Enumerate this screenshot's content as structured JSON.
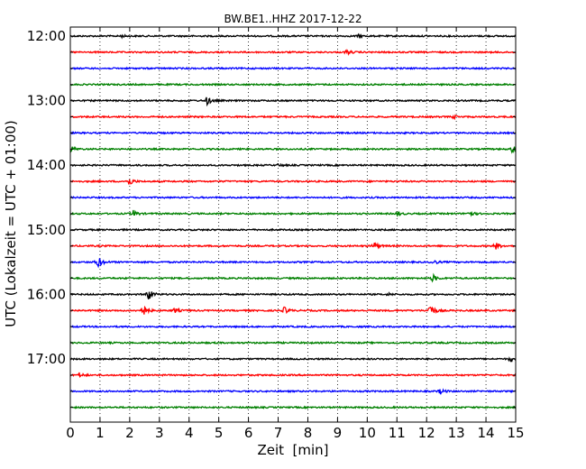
{
  "chart_data": {
    "type": "line",
    "title": "BW.BE1..HHZ 2017-12-22",
    "xlabel": "Zeit  [min]",
    "ylabel": "UTC (Lokalzeit = UTC + 01:00)",
    "xlim": [
      0,
      15
    ],
    "x_ticks": [
      0,
      1,
      2,
      3,
      4,
      5,
      6,
      7,
      8,
      9,
      10,
      11,
      12,
      13,
      14,
      15
    ],
    "x_tick_labels": [
      "0",
      "1",
      "2",
      "3",
      "4",
      "5",
      "6",
      "7",
      "8",
      "9",
      "10",
      "11",
      "12",
      "13",
      "14",
      "15"
    ],
    "y_tick_labels": [
      "12:00",
      "13:00",
      "14:00",
      "15:00",
      "16:00",
      "17:00"
    ],
    "grid": "vertical dotted",
    "trace_colors": [
      "#000000",
      "#ff0000",
      "#0000ff",
      "#008000"
    ],
    "rows": [
      {
        "start": "12:00",
        "color": "#000000",
        "events": [
          {
            "t": 1.7,
            "amp": 0.15
          },
          {
            "t": 9.7,
            "amp": 0.15
          }
        ]
      },
      {
        "start": "12:15",
        "color": "#ff0000",
        "events": [
          {
            "t": 9.3,
            "amp": 0.3
          }
        ]
      },
      {
        "start": "12:30",
        "color": "#0000ff",
        "events": []
      },
      {
        "start": "12:45",
        "color": "#008000",
        "events": []
      },
      {
        "start": "13:00",
        "color": "#000000",
        "events": [
          {
            "t": 4.6,
            "amp": 0.55
          }
        ]
      },
      {
        "start": "13:15",
        "color": "#ff0000",
        "events": [
          {
            "t": 12.9,
            "amp": 0.2
          }
        ]
      },
      {
        "start": "13:30",
        "color": "#0000ff",
        "events": [
          {
            "t": 2.7,
            "amp": 0.15
          }
        ]
      },
      {
        "start": "13:45",
        "color": "#008000",
        "events": [
          {
            "t": 0.0,
            "amp": 0.4
          },
          {
            "t": 14.9,
            "amp": 0.8
          }
        ]
      },
      {
        "start": "14:00",
        "color": "#000000",
        "events": [
          {
            "t": 7.0,
            "amp": 0.15
          }
        ]
      },
      {
        "start": "14:15",
        "color": "#ff0000",
        "events": [
          {
            "t": 1.95,
            "amp": 0.6
          }
        ]
      },
      {
        "start": "14:30",
        "color": "#0000ff",
        "events": []
      },
      {
        "start": "14:45",
        "color": "#008000",
        "events": [
          {
            "t": 2.1,
            "amp": 0.45
          },
          {
            "t": 11.0,
            "amp": 0.25
          },
          {
            "t": 13.4,
            "amp": 0.4
          }
        ]
      },
      {
        "start": "15:00",
        "color": "#000000",
        "events": []
      },
      {
        "start": "15:15",
        "color": "#ff0000",
        "events": [
          {
            "t": 10.2,
            "amp": 0.55
          },
          {
            "t": 14.3,
            "amp": 0.55
          }
        ]
      },
      {
        "start": "15:30",
        "color": "#0000ff",
        "events": [
          {
            "t": 0.9,
            "amp": 0.85
          },
          {
            "t": 12.2,
            "amp": 0.3
          }
        ]
      },
      {
        "start": "15:45",
        "color": "#008000",
        "events": [
          {
            "t": 12.2,
            "amp": 0.5
          }
        ]
      },
      {
        "start": "16:00",
        "color": "#000000",
        "events": [
          {
            "t": 2.6,
            "amp": 0.9
          },
          {
            "t": 10.7,
            "amp": 0.15
          }
        ]
      },
      {
        "start": "16:15",
        "color": "#ff0000",
        "events": [
          {
            "t": 2.4,
            "amp": 1.0
          },
          {
            "t": 3.5,
            "amp": 0.3
          },
          {
            "t": 7.2,
            "amp": 0.45
          },
          {
            "t": 12.1,
            "amp": 0.95
          }
        ]
      },
      {
        "start": "16:30",
        "color": "#0000ff",
        "events": []
      },
      {
        "start": "16:45",
        "color": "#008000",
        "events": []
      },
      {
        "start": "17:00",
        "color": "#000000",
        "events": [
          {
            "t": 14.8,
            "amp": 0.35
          }
        ]
      },
      {
        "start": "17:15",
        "color": "#ff0000",
        "events": [
          {
            "t": 0.3,
            "amp": 0.25
          }
        ]
      },
      {
        "start": "17:30",
        "color": "#0000ff",
        "events": [
          {
            "t": 12.45,
            "amp": 0.35
          }
        ]
      },
      {
        "start": "17:45",
        "color": "#008000",
        "events": []
      }
    ]
  }
}
